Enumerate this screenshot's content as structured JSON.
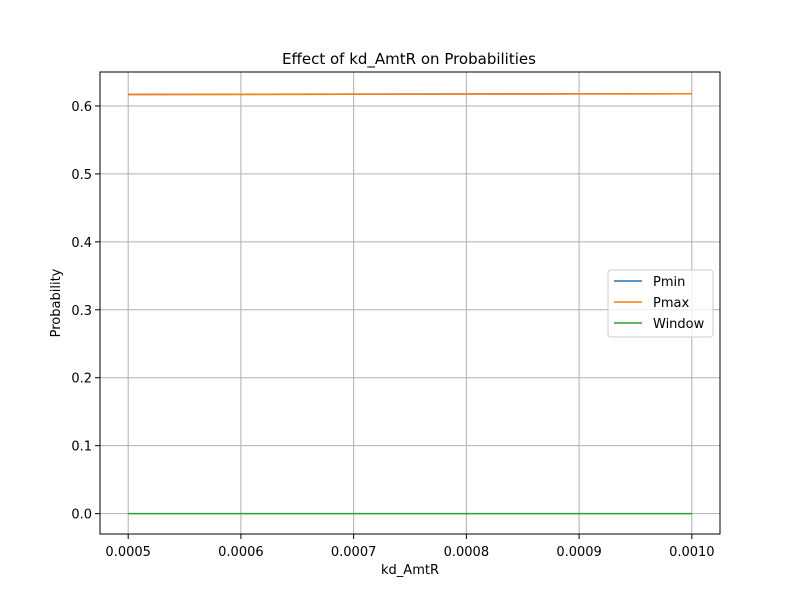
{
  "chart_data": {
    "type": "line",
    "title": "Effect of kd_AmtR on Probabilities",
    "xlabel": "kd_AmtR",
    "ylabel": "Probability",
    "xlim": [
      0.000475,
      0.001025
    ],
    "ylim": [
      -0.03,
      0.65
    ],
    "xticks": [
      0.0005,
      0.0006,
      0.0007,
      0.0008,
      0.0009,
      0.001
    ],
    "xtick_labels": [
      "0.0005",
      "0.0006",
      "0.0007",
      "0.0008",
      "0.0009",
      "0.0010"
    ],
    "yticks": [
      0.0,
      0.1,
      0.2,
      0.3,
      0.4,
      0.5,
      0.6
    ],
    "ytick_labels": [
      "0.0",
      "0.1",
      "0.2",
      "0.3",
      "0.4",
      "0.5",
      "0.6"
    ],
    "grid": true,
    "legend_position": "center-right",
    "x": [
      0.0005,
      0.0006,
      0.0007,
      0.0008,
      0.0009,
      0.001
    ],
    "series": [
      {
        "name": "Pmin",
        "color": "#1f77b4",
        "values": [
          0.617,
          0.6172,
          0.6174,
          0.6176,
          0.6178,
          0.618
        ]
      },
      {
        "name": "Pmax",
        "color": "#ff7f0e",
        "values": [
          0.617,
          0.6172,
          0.6174,
          0.6176,
          0.6178,
          0.618
        ]
      },
      {
        "name": "Window",
        "color": "#2ca02c",
        "values": [
          0.0,
          0.0,
          0.0,
          0.0,
          0.0,
          0.0
        ]
      }
    ]
  }
}
